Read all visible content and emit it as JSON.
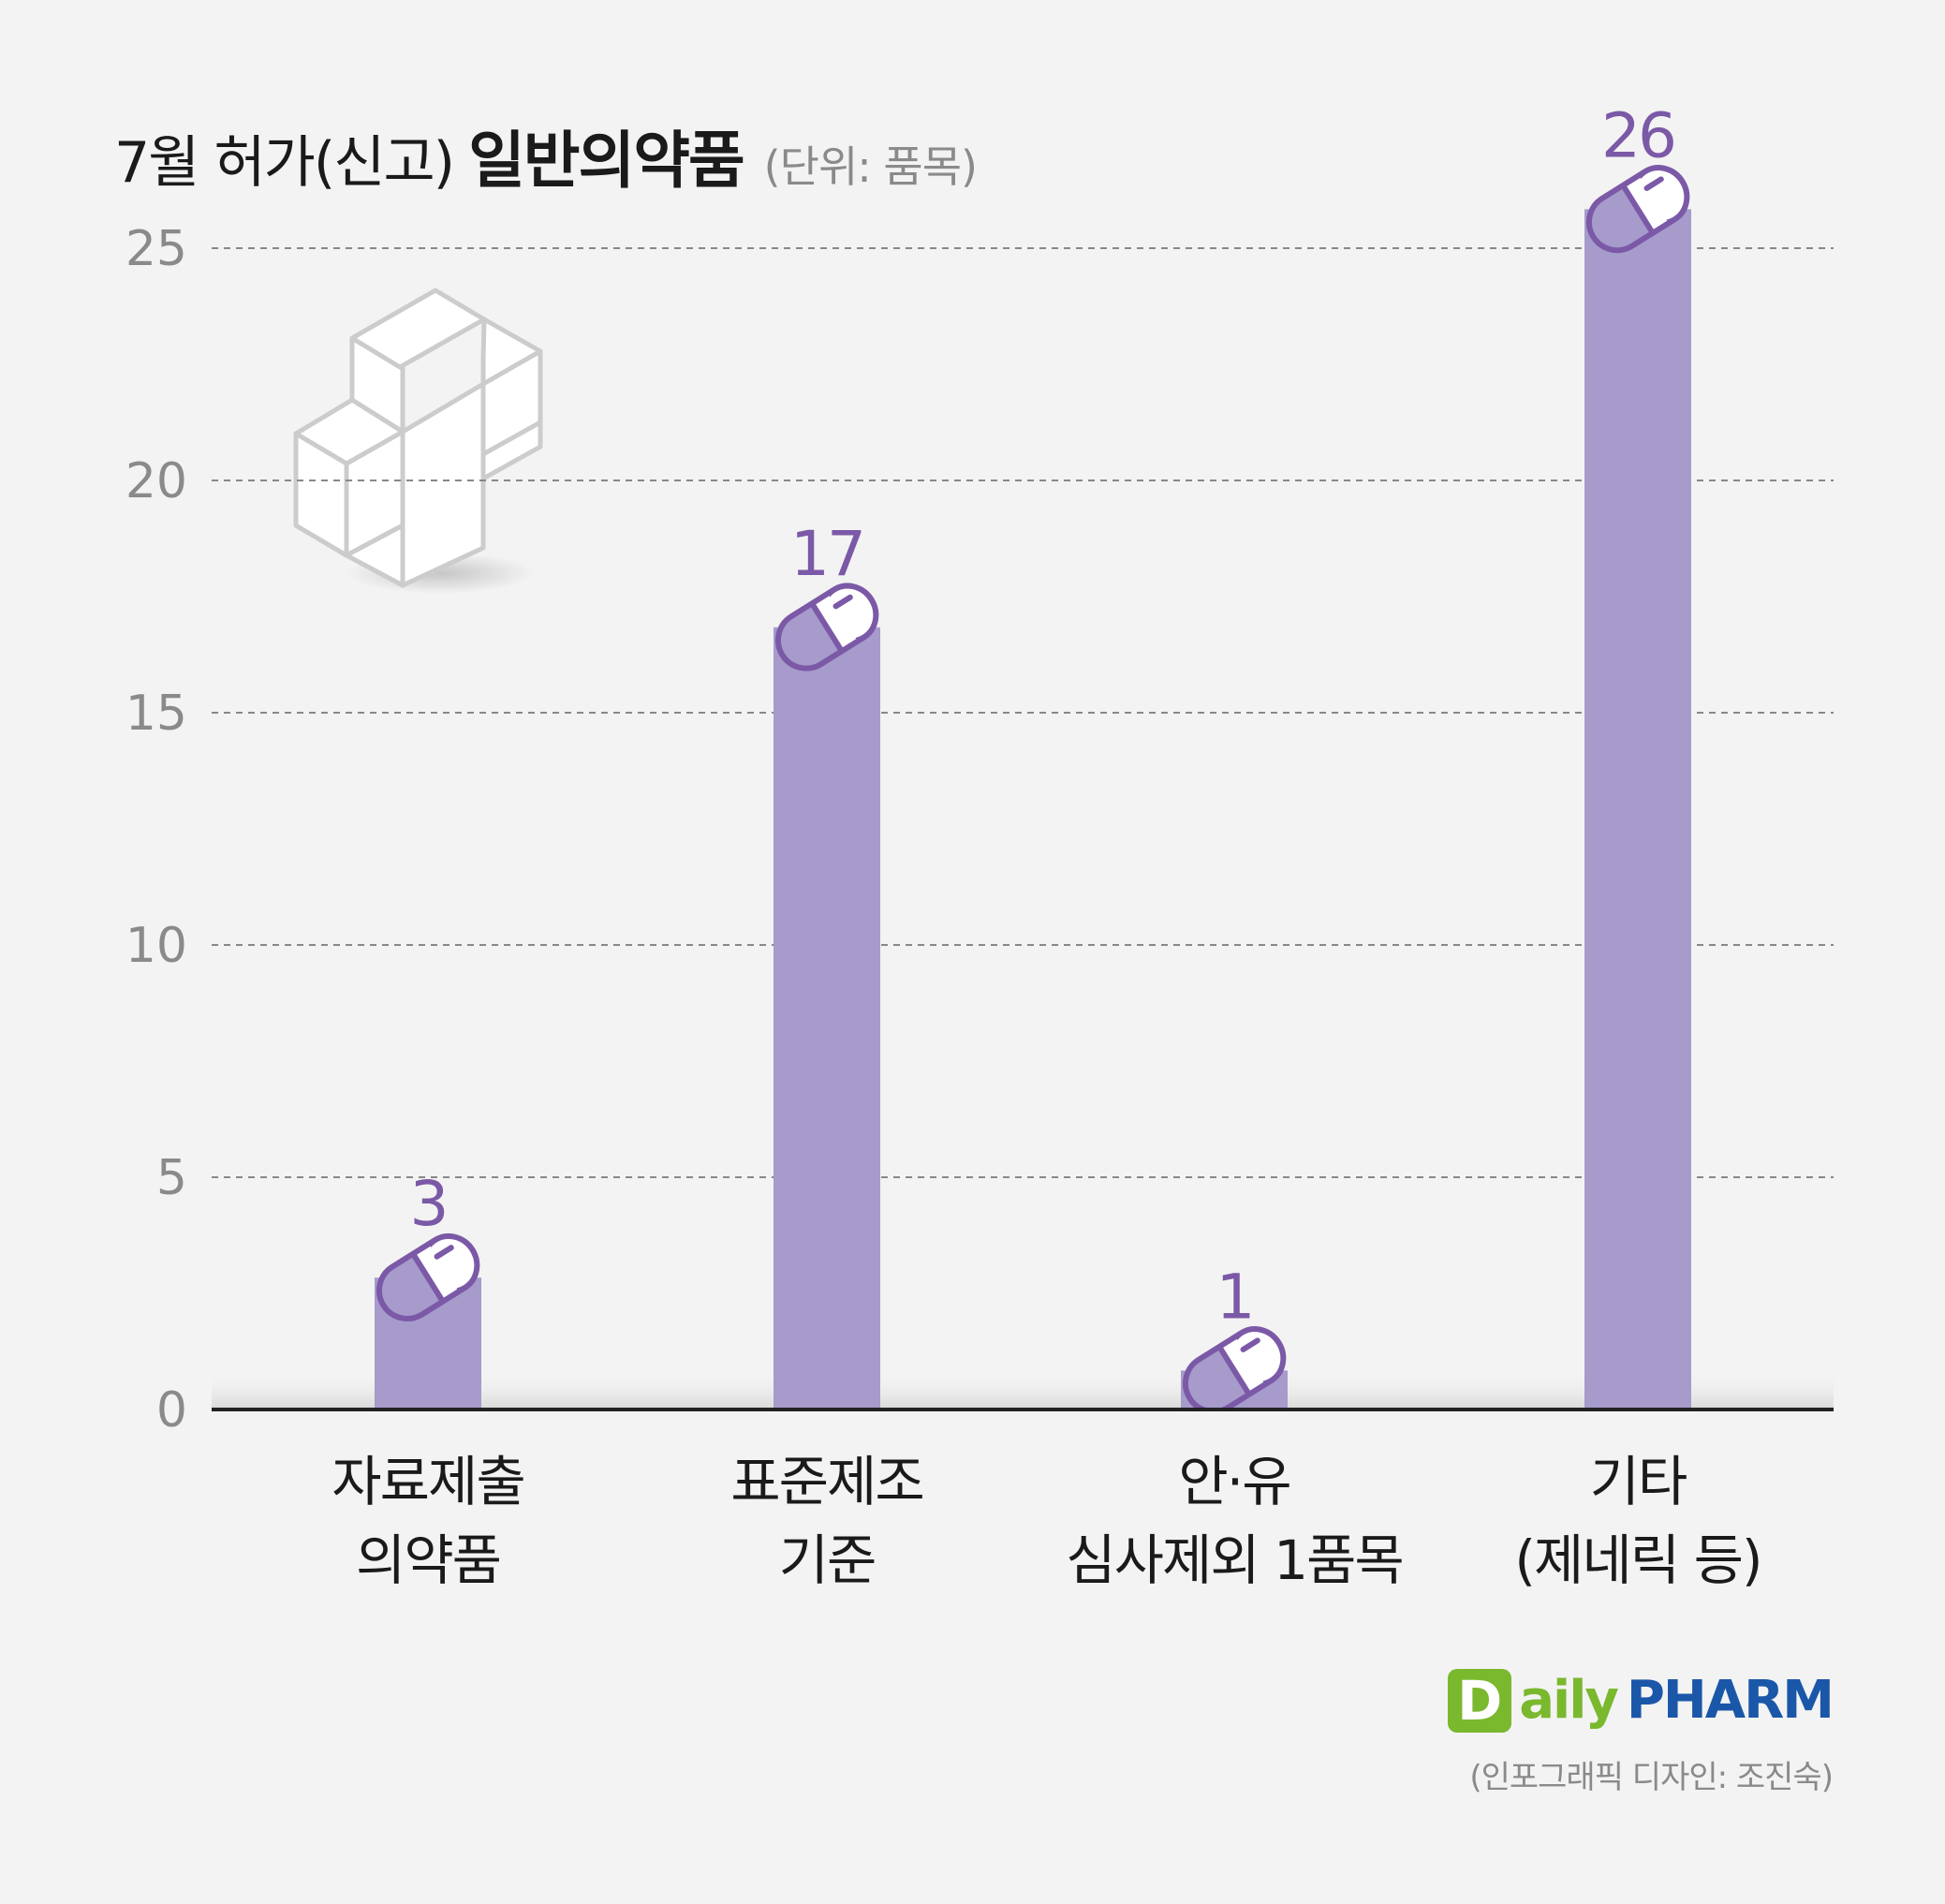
{
  "title": {
    "prefix": "7월 허가(신고)",
    "strong": "일반의약품",
    "unit": "(단위: 품목)"
  },
  "colors": {
    "bar": "#a69bcb",
    "accent": "#7b59a7",
    "axis": "#222222",
    "grid": "#888888",
    "tick_text": "#8a8a8a",
    "brand_green": "#7ab82e",
    "brand_blue": "#1b57a8"
  },
  "chart_data": {
    "type": "bar",
    "categories": [
      [
        "자료제출",
        "의약품"
      ],
      [
        "표준제조",
        "기준"
      ],
      [
        "안·유",
        "심사제외 1품목"
      ],
      [
        "기타",
        "(제네릭 등)"
      ]
    ],
    "values": [
      3,
      17,
      1,
      26
    ],
    "data_labels": [
      "3",
      "17",
      "1",
      "26"
    ],
    "yticks": [
      0,
      5,
      10,
      15,
      20,
      25
    ],
    "ylim": [
      0,
      27
    ],
    "grid": true,
    "title": "7월 허가(신고) 일반의약품",
    "unit": "(단위: 품목)"
  },
  "brand": {
    "logo_letter": "D",
    "logo_word_1": "aily",
    "logo_word_2": "PHARM"
  },
  "credit": "(인포그래픽 디자인: 조진숙)",
  "icons": [
    "medical-cross-icon",
    "pill-capsule-icon"
  ]
}
